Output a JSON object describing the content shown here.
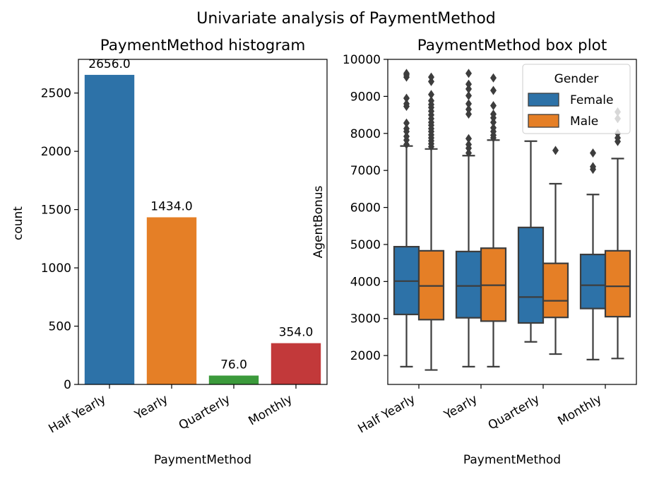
{
  "suptitle": "Univariate analysis of PaymentMethod",
  "colors": {
    "blue": "#2d72a8",
    "orange": "#e57f26",
    "green": "#3b9a3b",
    "red": "#c2393a",
    "edge": "#3d3d3d"
  },
  "chart_data": [
    {
      "type": "bar",
      "title": "PaymentMethod histogram",
      "xlabel": "PaymentMethod",
      "ylabel": "count",
      "categories": [
        "Half Yearly",
        "Yearly",
        "Quarterly",
        "Monthly"
      ],
      "values": [
        2656.0,
        1434.0,
        76.0,
        354.0
      ],
      "value_labels": [
        "2656.0",
        "1434.0",
        "76.0",
        "354.0"
      ],
      "bar_colors": [
        "#2d72a8",
        "#e57f26",
        "#3b9a3b",
        "#c2393a"
      ],
      "yticks": [
        0,
        500,
        1000,
        1500,
        2000,
        2500
      ],
      "ylim": [
        0,
        2789
      ],
      "grid": false
    },
    {
      "type": "box",
      "title": "PaymentMethod box plot",
      "xlabel": "PaymentMethod",
      "ylabel": "AgentBonus",
      "categories": [
        "Half Yearly",
        "Yearly",
        "Quarterly",
        "Monthly"
      ],
      "legend": {
        "title": "Gender",
        "placement": "top-right",
        "entries": [
          "Female",
          "Male"
        ]
      },
      "yticks": [
        2000,
        3000,
        4000,
        5000,
        6000,
        7000,
        8000,
        9000,
        10000
      ],
      "ylim": [
        1220,
        10000
      ],
      "grid": false,
      "series": [
        {
          "name": "Female",
          "color": "#2d72a8",
          "boxes": [
            {
              "whisker_low": 1700,
              "q1": 3110,
              "median": 4010,
              "q3": 4940,
              "whisker_high": 7660,
              "outliers": [
                7700,
                7820,
                7920,
                8050,
                8130,
                8280,
                8730,
                8800,
                8950,
                9520,
                9580,
                9620
              ]
            },
            {
              "whisker_low": 1700,
              "q1": 3020,
              "median": 3880,
              "q3": 4810,
              "whisker_high": 7400,
              "outliers": [
                7470,
                7600,
                7700,
                7860,
                8520,
                8650,
                8800,
                9020,
                9200,
                9330,
                9620
              ]
            },
            {
              "whisker_low": 2370,
              "q1": 2880,
              "median": 3580,
              "q3": 5460,
              "whisker_high": 7790,
              "outliers": []
            },
            {
              "whisker_low": 1890,
              "q1": 3270,
              "median": 3900,
              "q3": 4730,
              "whisker_high": 6350,
              "outliers": [
                7030,
                7100,
                7470
              ]
            }
          ]
        },
        {
          "name": "Male",
          "color": "#e57f26",
          "boxes": [
            {
              "whisker_low": 1610,
              "q1": 2970,
              "median": 3880,
              "q3": 4830,
              "whisker_high": 7580,
              "outliers": [
                7640,
                7720,
                7800,
                7880,
                7960,
                8050,
                8130,
                8220,
                8300,
                8400,
                8500,
                8600,
                8700,
                8780,
                8880,
                9050,
                9400,
                9520
              ]
            },
            {
              "whisker_low": 1700,
              "q1": 2930,
              "median": 3900,
              "q3": 4900,
              "whisker_high": 7820,
              "outliers": [
                7880,
                7950,
                8050,
                8150,
                8300,
                8420,
                8520,
                8750,
                9160,
                9500
              ]
            },
            {
              "whisker_low": 2040,
              "q1": 3030,
              "median": 3480,
              "q3": 4490,
              "whisker_high": 6640,
              "outliers": [
                7540
              ]
            },
            {
              "whisker_low": 1920,
              "q1": 3050,
              "median": 3870,
              "q3": 4830,
              "whisker_high": 7320,
              "outliers": [
                7780,
                7880,
                8000,
                8400,
                8580
              ]
            }
          ]
        }
      ]
    }
  ]
}
